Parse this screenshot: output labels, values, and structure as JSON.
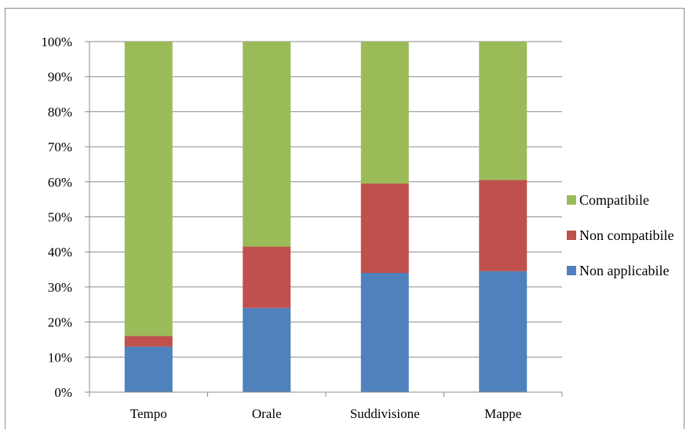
{
  "chart_data": {
    "type": "bar",
    "stacked": true,
    "percent": true,
    "categories": [
      "Tempo",
      "Orale",
      "Suddivisione",
      "Mappe"
    ],
    "series": [
      {
        "name": "Non applicabile",
        "values": [
          13,
          24,
          34,
          34.5
        ],
        "color": "#4f81bd"
      },
      {
        "name": "Non compatibile",
        "values": [
          3,
          17.5,
          25.5,
          26
        ],
        "color": "#c0504d"
      },
      {
        "name": "Compatibile",
        "values": [
          84,
          58.5,
          40.5,
          39.5
        ],
        "color": "#9bbb59"
      }
    ],
    "y_ticks": [
      "0%",
      "10%",
      "20%",
      "30%",
      "40%",
      "50%",
      "60%",
      "70%",
      "80%",
      "90%",
      "100%"
    ],
    "ylim": [
      0,
      100
    ],
    "grid": true,
    "legend_position": "right",
    "legend_order": [
      "Compatibile",
      "Non compatibile",
      "Non applicabile"
    ],
    "title": "",
    "xlabel": "",
    "ylabel": ""
  }
}
